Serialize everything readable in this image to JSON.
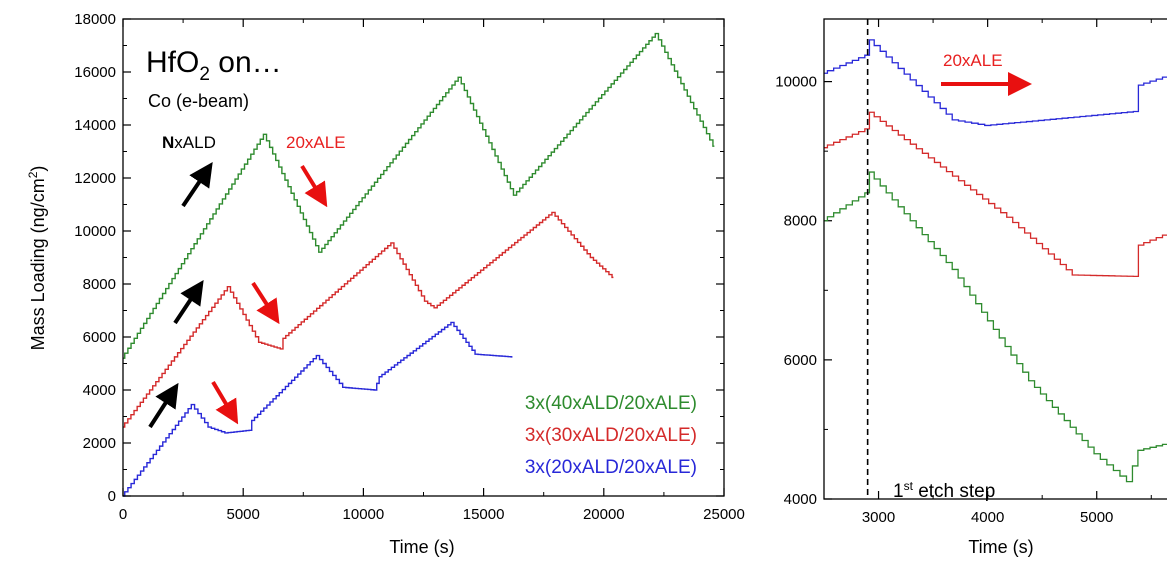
{
  "chart_data": [
    {
      "type": "line",
      "title": "",
      "annotations": {
        "title_main": "HfO",
        "title_sub": "2",
        "title_rest": " on…",
        "substrate": "Co (e-beam)",
        "ald_label_bold": "N",
        "ald_label_rest": "xALD",
        "ale_label": "20xALE"
      },
      "xlabel": "Time (s)",
      "ylabel": "Mass Loading (ng/cm",
      "ylabel_sup": "2",
      "ylabel_end": ")",
      "xlim": [
        0,
        25000
      ],
      "ylim": [
        0,
        18000
      ],
      "xticks": [
        "0",
        "5000",
        "10000",
        "15000",
        "20000",
        "25000"
      ],
      "yticks": [
        "0",
        "2000",
        "4000",
        "6000",
        "8000",
        "10000",
        "12000",
        "14000",
        "16000",
        "18000"
      ],
      "colors": {
        "green": "#2e8b2e",
        "red": "#d42a2a",
        "blue": "#2828d8",
        "arrow_black": "#000000",
        "arrow_red": "#e81010"
      },
      "series": [
        {
          "name": "3x(40xALD/20xALE)",
          "color": "#2e8b2e",
          "points": [
            [
              0,
              5200
            ],
            [
              5900,
              13650
            ],
            [
              8200,
              9200
            ],
            [
              14000,
              15800
            ],
            [
              16300,
              11350
            ],
            [
              22200,
              17450
            ],
            [
              24600,
              13200
            ]
          ]
        },
        {
          "name": "3x(30xALD/20xALE)",
          "color": "#d42a2a",
          "points": [
            [
              0,
              2600
            ],
            [
              4400,
              7900
            ],
            [
              5700,
              5800
            ],
            [
              6600,
              5550
            ],
            [
              6700,
              5950
            ],
            [
              11200,
              9550
            ],
            [
              12600,
              7350
            ],
            [
              13000,
              7100
            ],
            [
              17900,
              10700
            ],
            [
              19500,
              9000
            ],
            [
              20400,
              8250
            ]
          ]
        },
        {
          "name": "3x(20xALD/20xALE)",
          "color": "#2828d8",
          "points": [
            [
              0,
              0
            ],
            [
              2900,
              3450
            ],
            [
              3600,
              2600
            ],
            [
              4300,
              2380
            ],
            [
              5300,
              2480
            ],
            [
              5400,
              2850
            ],
            [
              8100,
              5300
            ],
            [
              9200,
              4100
            ],
            [
              10500,
              4000
            ],
            [
              10700,
              4500
            ],
            [
              13700,
              6550
            ],
            [
              14700,
              5350
            ],
            [
              16200,
              5250
            ]
          ]
        }
      ]
    },
    {
      "type": "line",
      "title": "",
      "annotations": {
        "ale_label": "20xALE",
        "etch_step_pre": "1",
        "etch_step_sup": "st",
        "etch_step_post": " etch step",
        "etch_step_time": 2900
      },
      "xlabel": "Time (s)",
      "ylabel": "",
      "xlim": [
        2500,
        5800
      ],
      "ylim": [
        4000,
        10900
      ],
      "xticks": [
        "3000",
        "4000",
        "5000"
      ],
      "yticks": [
        "4000",
        "6000",
        "8000",
        "10000"
      ],
      "series": [
        {
          "color": "#2828d8",
          "points": [
            [
              2500,
              10120
            ],
            [
              2900,
              10380
            ],
            [
              2930,
              10600
            ],
            [
              3700,
              9450
            ],
            [
              4000,
              9370
            ],
            [
              5360,
              9570
            ],
            [
              5400,
              9950
            ],
            [
              5800,
              10150
            ]
          ]
        },
        {
          "color": "#d42a2a",
          "points": [
            [
              2500,
              9050
            ],
            [
              2900,
              9320
            ],
            [
              2930,
              9560
            ],
            [
              4200,
              8050
            ],
            [
              4800,
              7220
            ],
            [
              5360,
              7200
            ],
            [
              5400,
              7650
            ],
            [
              5800,
              7900
            ]
          ]
        },
        {
          "color": "#2e8b2e",
          "points": [
            [
              2500,
              8000
            ],
            [
              2900,
              8400
            ],
            [
              2930,
              8700
            ],
            [
              3700,
              7300
            ],
            [
              4400,
              5700
            ],
            [
              5000,
              4650
            ],
            [
              5300,
              4250
            ],
            [
              5400,
              4700
            ],
            [
              5800,
              4850
            ]
          ]
        }
      ]
    }
  ]
}
